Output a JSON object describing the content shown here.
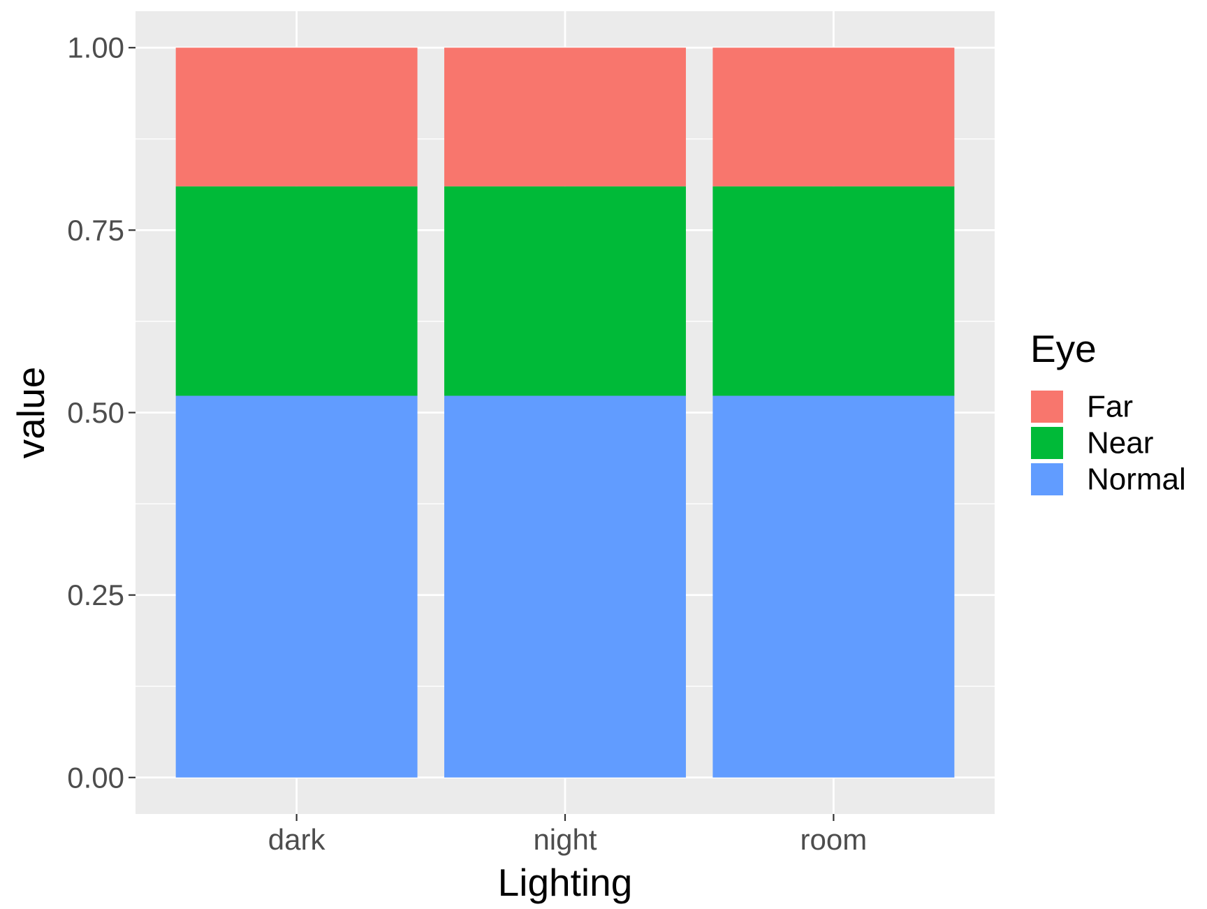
{
  "chart_data": {
    "type": "bar",
    "stacked": true,
    "position": "fill",
    "categories": [
      "dark",
      "night",
      "room"
    ],
    "series": [
      {
        "name": "Normal",
        "values": [
          0.523,
          0.523,
          0.523
        ],
        "color": "#619CFF"
      },
      {
        "name": "Near",
        "values": [
          0.287,
          0.287,
          0.287
        ],
        "color": "#00BA38"
      },
      {
        "name": "Far",
        "values": [
          0.19,
          0.19,
          0.19
        ],
        "color": "#F8766D"
      }
    ],
    "xlabel": "Lighting",
    "ylabel": "value",
    "ylim": [
      -0.05,
      1.05
    ],
    "yticks": [
      "0.00",
      "0.25",
      "0.50",
      "0.75",
      "1.00"
    ],
    "grid": true,
    "legend": {
      "title": "Eye",
      "position": "right",
      "entries": [
        "Far",
        "Near",
        "Normal"
      ]
    },
    "colors": {
      "panel_background": "#EBEBEB",
      "grid": "#FFFFFF",
      "axis_text": "#4D4D4D",
      "axis_title": "#000000"
    }
  }
}
